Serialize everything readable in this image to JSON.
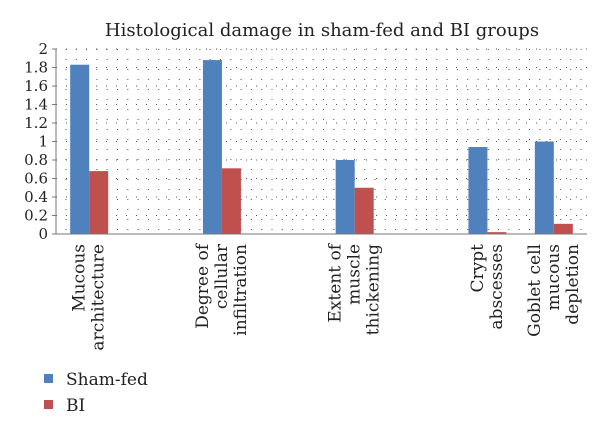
{
  "chart_data": {
    "type": "bar",
    "title": "Histological damage in sham-fed and BI groups",
    "xlabel": "",
    "ylabel": "",
    "ylim": [
      0,
      2
    ],
    "yticks": [
      "0",
      "0.2",
      "0.4",
      "0.6",
      "0.8",
      "1",
      "1.2",
      "1.4",
      "1.6",
      "1.8",
      "2"
    ],
    "grid": "dotted",
    "legend_position": "bottom-left",
    "categories": [
      "Mucous architecture",
      "",
      "Degree of cellular infiltration",
      "",
      "Extent of muscle thickening",
      "",
      "Crypt abscesses",
      "Goblet cell mucous depletion"
    ],
    "category_label_lines": [
      [
        "Mucous",
        "architecture"
      ],
      [],
      [
        "Degree of",
        "cellular",
        "infiltration"
      ],
      [],
      [
        "Extent of",
        "muscle",
        "thickening"
      ],
      [],
      [
        "Crypt",
        "abscesses"
      ],
      [
        "Goblet cell",
        "mucous",
        "depletion"
      ]
    ],
    "series": [
      {
        "name": "Sham-fed",
        "color": "#4f81bd",
        "values": [
          1.83,
          null,
          1.88,
          null,
          0.8,
          null,
          0.94,
          1.0
        ]
      },
      {
        "name": "BI",
        "color": "#c0504d",
        "values": [
          0.68,
          null,
          0.71,
          null,
          0.5,
          null,
          0.02,
          0.11
        ]
      }
    ]
  }
}
